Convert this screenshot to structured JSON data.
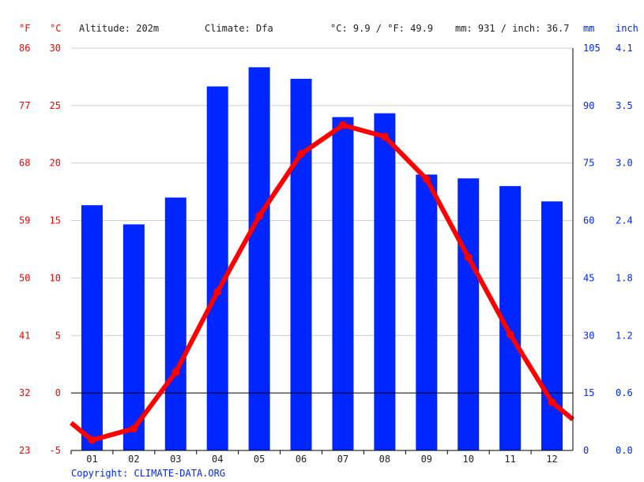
{
  "header": {
    "unit_f": "°F",
    "unit_c": "°C",
    "altitude": "Altitude: 202m",
    "climate": "Climate: Dfa",
    "temp_avg": "°C: 9.9 / °F: 49.9",
    "precip_total": "mm: 931 / inch: 36.7",
    "unit_mm": "mm",
    "unit_inch": "inch"
  },
  "copyright": "Copyright: CLIMATE-DATA.ORG",
  "colors": {
    "bars": "#0026ff",
    "line": "#ff0000",
    "temp_labels": "#ff0000",
    "precip_labels": "#0026ff",
    "grid": "#cccccc",
    "zero_line": "#000000"
  },
  "chart_data": {
    "type": "bar+line",
    "categories": [
      "01",
      "02",
      "03",
      "04",
      "05",
      "06",
      "07",
      "08",
      "09",
      "10",
      "11",
      "12"
    ],
    "series": [
      {
        "type": "bar",
        "axis": "precipitation_mm",
        "values": [
          64,
          59,
          66,
          95,
          100,
          97,
          87,
          88,
          72,
          71,
          69,
          65
        ]
      },
      {
        "type": "line",
        "axis": "temperature_c",
        "values": [
          -4.1,
          -3.1,
          1.8,
          8.8,
          15.4,
          20.8,
          23.3,
          22.3,
          18.6,
          11.8,
          5.1,
          -0.8
        ],
        "start_value": -2.6,
        "end_value": -2.3
      }
    ],
    "axes": {
      "temperature_c": {
        "ylim": [
          -5,
          30
        ],
        "ticks": [
          "-5",
          "0",
          "5",
          "10",
          "15",
          "20",
          "25",
          "30"
        ]
      },
      "temperature_f": {
        "ticks": [
          "23",
          "32",
          "41",
          "50",
          "59",
          "68",
          "77",
          "86"
        ]
      },
      "precipitation_mm": {
        "ylim": [
          0,
          105
        ],
        "ticks": [
          "0",
          "15",
          "30",
          "45",
          "60",
          "75",
          "90",
          "105"
        ]
      },
      "precipitation_inch": {
        "ticks": [
          "0.0",
          "0.6",
          "1.2",
          "1.8",
          "2.4",
          "3.0",
          "3.5",
          "4.1"
        ]
      }
    },
    "grid": true,
    "zero_line": true
  }
}
